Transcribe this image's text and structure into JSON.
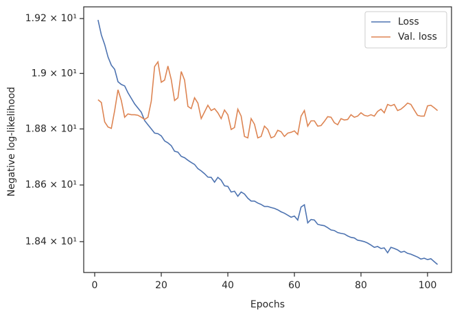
{
  "chart_data": {
    "type": "line",
    "xlabel": "Epochs",
    "ylabel": "Negative log-likelihood",
    "yscale": "log",
    "legend": "upper right",
    "grid": false,
    "xlim": [
      -3.3,
      107.2
    ],
    "ylim": [
      18.292,
      19.243
    ],
    "xticks": [
      0,
      20,
      40,
      60,
      80,
      100
    ],
    "yticks": [
      {
        "value": 18.4,
        "label": "1.84 × 10¹"
      },
      {
        "value": 18.6,
        "label": "1.86 × 10¹"
      },
      {
        "value": 18.8,
        "label": "1.88 × 10¹"
      },
      {
        "value": 19.0,
        "label": "1.9 × 10¹"
      },
      {
        "value": 19.2,
        "label": "1.92 × 10¹"
      }
    ],
    "x": [
      1,
      2,
      3,
      4,
      5,
      6,
      7,
      8,
      9,
      10,
      11,
      12,
      13,
      14,
      15,
      16,
      17,
      18,
      19,
      20,
      21,
      22,
      23,
      24,
      25,
      26,
      27,
      28,
      29,
      30,
      31,
      32,
      33,
      34,
      35,
      36,
      37,
      38,
      39,
      40,
      41,
      42,
      43,
      44,
      45,
      46,
      47,
      48,
      49,
      50,
      51,
      52,
      53,
      54,
      55,
      56,
      57,
      58,
      59,
      60,
      61,
      62,
      63,
      64,
      65,
      66,
      67,
      68,
      69,
      70,
      71,
      72,
      73,
      74,
      75,
      76,
      77,
      78,
      79,
      80,
      81,
      82,
      83,
      84,
      85,
      86,
      87,
      88,
      89,
      90,
      91,
      92,
      93,
      94,
      95,
      96,
      97,
      98,
      99,
      100,
      101,
      102,
      103
    ],
    "series": [
      {
        "name": "Loss",
        "color": "#4c72b0",
        "values": [
          19.195,
          19.14,
          19.105,
          19.06,
          19.03,
          19.015,
          18.97,
          18.96,
          18.955,
          18.93,
          18.91,
          18.89,
          18.875,
          18.86,
          18.83,
          18.815,
          18.8,
          18.785,
          18.783,
          18.775,
          18.757,
          18.75,
          18.74,
          18.72,
          18.717,
          18.702,
          18.697,
          18.688,
          18.68,
          18.673,
          18.658,
          18.65,
          18.64,
          18.628,
          18.627,
          18.61,
          18.627,
          18.617,
          18.597,
          18.595,
          18.575,
          18.578,
          18.56,
          18.575,
          18.568,
          18.553,
          18.543,
          18.543,
          18.536,
          18.531,
          18.524,
          18.524,
          18.52,
          18.517,
          18.512,
          18.505,
          18.5,
          18.493,
          18.486,
          18.49,
          18.476,
          18.522,
          18.53,
          18.466,
          18.478,
          18.476,
          18.461,
          18.458,
          18.456,
          18.449,
          18.441,
          18.439,
          18.432,
          18.429,
          18.427,
          18.42,
          18.415,
          18.413,
          18.405,
          18.403,
          18.4,
          18.395,
          18.388,
          18.38,
          18.383,
          18.376,
          18.378,
          18.361,
          18.38,
          18.376,
          18.371,
          18.363,
          18.366,
          18.359,
          18.356,
          18.351,
          18.346,
          18.339,
          18.342,
          18.337,
          18.34,
          18.33,
          18.32
        ]
      },
      {
        "name": "Val. loss",
        "color": "#dd8452",
        "values": [
          18.905,
          18.895,
          18.825,
          18.807,
          18.802,
          18.866,
          18.941,
          18.902,
          18.842,
          18.854,
          18.851,
          18.851,
          18.849,
          18.842,
          18.834,
          18.842,
          18.9,
          19.025,
          19.042,
          18.968,
          18.976,
          19.027,
          18.978,
          18.902,
          18.912,
          19.007,
          18.976,
          18.881,
          18.873,
          18.912,
          18.893,
          18.837,
          18.861,
          18.885,
          18.866,
          18.873,
          18.858,
          18.837,
          18.868,
          18.851,
          18.798,
          18.805,
          18.871,
          18.846,
          18.773,
          18.768,
          18.837,
          18.817,
          18.768,
          18.773,
          18.81,
          18.798,
          18.768,
          18.773,
          18.795,
          18.79,
          18.773,
          18.785,
          18.788,
          18.793,
          18.78,
          18.846,
          18.866,
          18.81,
          18.829,
          18.829,
          18.81,
          18.812,
          18.827,
          18.844,
          18.842,
          18.822,
          18.815,
          18.837,
          18.832,
          18.834,
          18.851,
          18.842,
          18.846,
          18.858,
          18.849,
          18.846,
          18.851,
          18.846,
          18.863,
          18.871,
          18.858,
          18.888,
          18.883,
          18.888,
          18.866,
          18.871,
          18.881,
          18.893,
          18.888,
          18.868,
          18.849,
          18.846,
          18.846,
          18.883,
          18.885,
          18.876,
          18.866
        ]
      }
    ]
  }
}
